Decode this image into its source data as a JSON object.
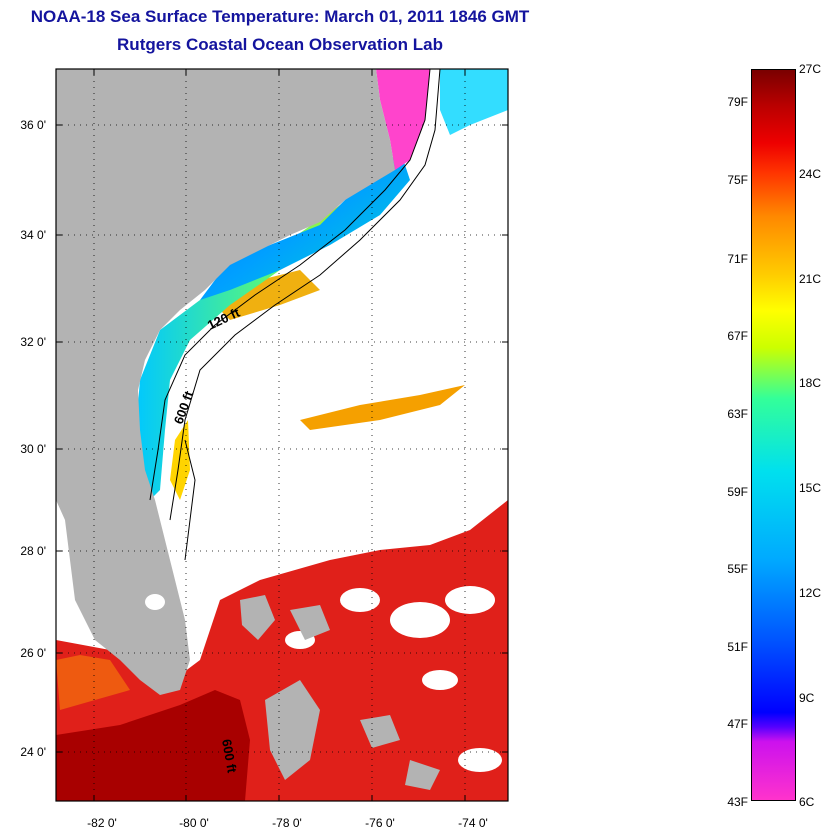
{
  "header": {
    "title": "NOAA-18 Sea Surface Temperature:  March 01, 2011 1846 GMT",
    "subtitle": "Rutgers Coastal Ocean Observation Lab"
  },
  "map": {
    "lat_ticks": [
      "36 0'",
      "34 0'",
      "32 0'",
      "30 0'",
      "28 0'",
      "26 0'",
      "24 0'"
    ],
    "lon_ticks": [
      "-82 0'",
      "-80 0'",
      "-78 0'",
      "-76 0'",
      "-74 0'"
    ],
    "contours": [
      "120 ft",
      "600 ft",
      "600 ft"
    ],
    "colors": {
      "land": "#b3b3b3",
      "water_missing": "#ffffff",
      "warm": "#e31a1a",
      "title": "#14149e"
    }
  },
  "colorbar": {
    "fahrenheit": [
      "79F",
      "75F",
      "71F",
      "67F",
      "63F",
      "59F",
      "55F",
      "51F",
      "47F",
      "43F"
    ],
    "celsius": [
      "27C",
      "24C",
      "21C",
      "18C",
      "15C",
      "12C",
      "9C",
      "6C"
    ]
  }
}
